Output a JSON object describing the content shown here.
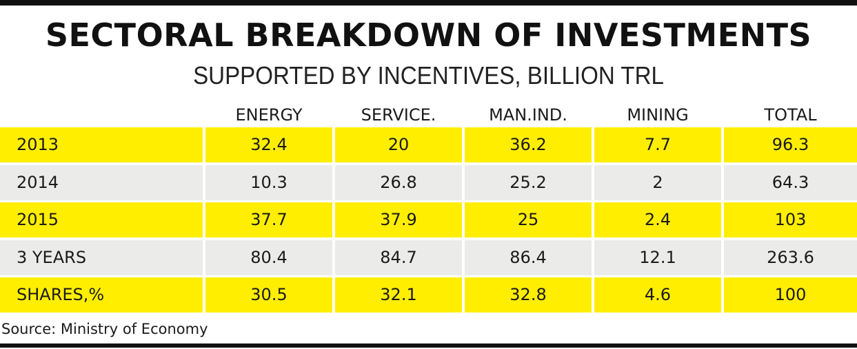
{
  "title": "SECTORAL BREAKDOWN OF INVESTMENTS",
  "subtitle": "SUPPORTED BY INCENTIVES, BILLION TRL",
  "source": "Source: Ministry of Economy",
  "colors": {
    "yellow": "#ffee00",
    "gray": "#ebebea",
    "rule": "#111111"
  },
  "chart_data": {
    "type": "table",
    "title": "SECTORAL BREAKDOWN OF INVESTMENTS",
    "subtitle": "SUPPORTED BY INCENTIVES, BILLION TRL",
    "columns": [
      "ENERGY",
      "SERVICE.",
      "MAN.IND.",
      "MINING",
      "TOTAL"
    ],
    "rows": [
      {
        "label": "2013",
        "values": [
          "32.4",
          "20",
          "36.2",
          "7.7",
          "96.3"
        ],
        "shade": "yellow"
      },
      {
        "label": "2014",
        "values": [
          "10.3",
          "26.8",
          "25.2",
          "2",
          "64.3"
        ],
        "shade": "gray"
      },
      {
        "label": "2015",
        "values": [
          "37.7",
          "37.9",
          "25",
          "2.4",
          "103"
        ],
        "shade": "yellow"
      },
      {
        "label": "3 YEARS",
        "values": [
          "80.4",
          "84.7",
          "86.4",
          "12.1",
          "263.6"
        ],
        "shade": "gray"
      },
      {
        "label": "SHARES,%",
        "values": [
          "30.5",
          "32.1",
          "32.8",
          "4.6",
          "100"
        ],
        "shade": "yellow"
      }
    ]
  }
}
